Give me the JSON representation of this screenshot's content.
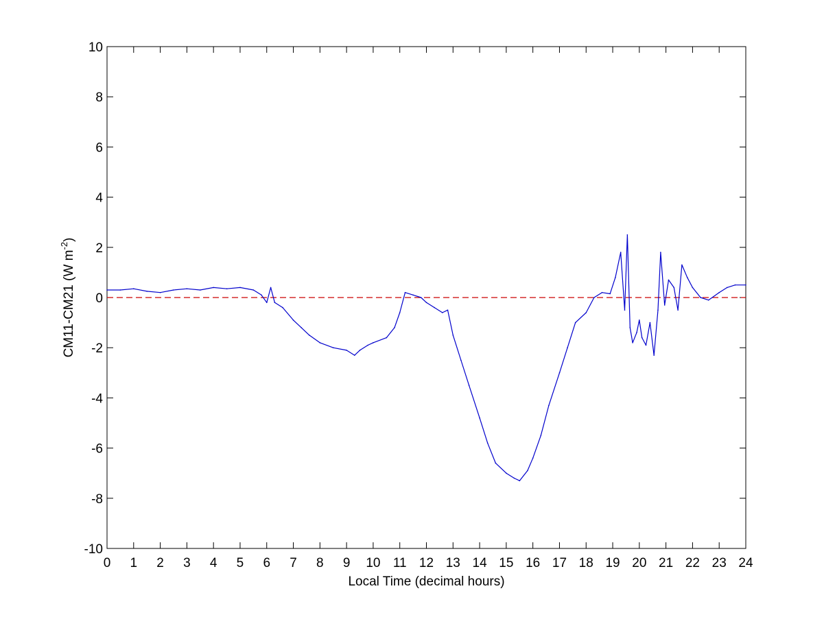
{
  "chart_data": {
    "type": "line",
    "title": "",
    "xlabel": "Local Time (decimal hours)",
    "ylabel": "CM11-CM21 (W m",
    "ylabel_sup": "-2",
    "ylabel_end": ")",
    "xlim": [
      0,
      24
    ],
    "ylim": [
      -10,
      10
    ],
    "x_ticks": [
      0,
      1,
      2,
      3,
      4,
      5,
      6,
      7,
      8,
      9,
      10,
      11,
      12,
      13,
      14,
      15,
      16,
      17,
      18,
      19,
      20,
      21,
      22,
      23,
      24
    ],
    "y_ticks": [
      -10,
      -8,
      -6,
      -4,
      -2,
      0,
      2,
      4,
      6,
      8,
      10
    ],
    "grid": false,
    "colors": {
      "series": "#0000cc",
      "reference": "#cc0000",
      "axes": "#000000",
      "background": "#ffffff"
    },
    "reference_line": {
      "y": 0,
      "style": "dashed"
    },
    "series": [
      {
        "x": [
          0,
          0.5,
          1,
          1.5,
          2,
          2.5,
          3,
          3.5,
          4,
          4.5,
          5,
          5.5,
          5.8,
          6.0,
          6.15,
          6.3,
          6.6,
          7.0,
          7.3,
          7.6,
          8.0,
          8.5,
          9.0,
          9.3,
          9.5,
          9.8,
          10.0,
          10.5,
          10.8,
          11.0,
          11.2,
          11.5,
          11.8,
          12.0,
          12.3,
          12.6,
          12.8,
          13.0,
          13.3,
          13.6,
          14.0,
          14.3,
          14.6,
          15.0,
          15.3,
          15.5,
          15.8,
          16.0,
          16.3,
          16.6,
          17.0,
          17.3,
          17.6,
          18.0,
          18.3,
          18.6,
          18.9,
          19.1,
          19.3,
          19.45,
          19.55,
          19.65,
          19.75,
          19.9,
          20.0,
          20.1,
          20.25,
          20.4,
          20.55,
          20.7,
          20.8,
          20.95,
          21.1,
          21.3,
          21.45,
          21.6,
          21.8,
          22.0,
          22.3,
          22.6,
          23.0,
          23.3,
          23.6,
          24.0
        ],
        "y": [
          0.3,
          0.3,
          0.35,
          0.25,
          0.2,
          0.3,
          0.35,
          0.3,
          0.4,
          0.35,
          0.4,
          0.3,
          0.1,
          -0.2,
          0.4,
          -0.2,
          -0.4,
          -0.9,
          -1.2,
          -1.5,
          -1.8,
          -2.0,
          -2.1,
          -2.3,
          -2.1,
          -1.9,
          -1.8,
          -1.6,
          -1.2,
          -0.6,
          0.2,
          0.1,
          0.0,
          -0.2,
          -0.4,
          -0.6,
          -0.5,
          -1.5,
          -2.5,
          -3.5,
          -4.8,
          -5.8,
          -6.6,
          -7.0,
          -7.2,
          -7.3,
          -6.9,
          -6.4,
          -5.5,
          -4.3,
          -3.0,
          -2.0,
          -1.0,
          -0.6,
          0.0,
          0.2,
          0.15,
          0.8,
          1.8,
          -0.5,
          2.5,
          -1.2,
          -1.8,
          -1.4,
          -0.9,
          -1.6,
          -1.9,
          -1.0,
          -2.3,
          -0.5,
          1.8,
          -0.3,
          0.7,
          0.4,
          -0.5,
          1.3,
          0.8,
          0.4,
          0.0,
          -0.1,
          0.2,
          0.4,
          0.5,
          0.5
        ]
      }
    ]
  }
}
